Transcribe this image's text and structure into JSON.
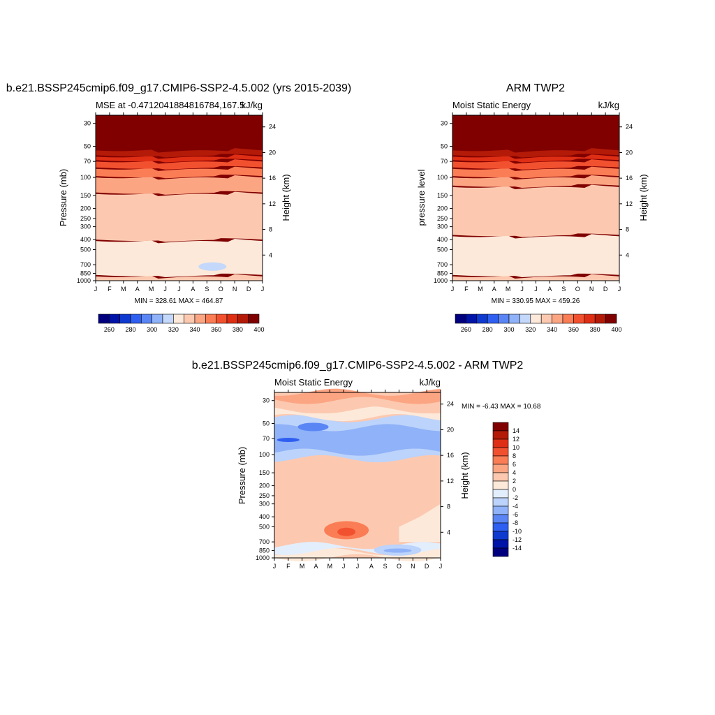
{
  "panel_1": {
    "main_title": "b.e21.BSSP245cmip6.f09_g17.CMIP6-SSP2-4.5.002 (yrs 2015-2039)",
    "left_string": "MSE at -0.4712041884816784,167.5",
    "right_string": "kJ/kg",
    "ylabel": "Pressure (mb)",
    "ylabel_right": "Height (km)",
    "stats": "MIN = 328.61 MAX = 464.87"
  },
  "panel_2": {
    "main_title": "ARM TWP2",
    "left_string": "Moist Static Energy",
    "right_string": "kJ/kg",
    "ylabel": "pressure level",
    "ylabel_right": "Height (km)",
    "stats": "MIN = 330.95 MAX = 459.26"
  },
  "panel_3": {
    "main_title": "b.e21.BSSP245cmip6.f09_g17.CMIP6-SSP2-4.5.002 - ARM TWP2",
    "left_string": "Moist Static Energy",
    "right_string": "kJ/kg",
    "ylabel": "Pressure (mb)",
    "ylabel_right": "Height (km)",
    "stats": "MIN =  -6.43 MAX =  10.68"
  },
  "chart_data": [
    {
      "type": "heatmap",
      "title": "b.e21.BSSP245cmip6.f09_g17.CMIP6-SSP2-4.5.002 (yrs 2015-2039)",
      "subtitle": "MSE at -0.4712041884816784,167.5",
      "units": "kJ/kg",
      "x": [
        "J",
        "F",
        "M",
        "A",
        "M",
        "J",
        "J",
        "A",
        "S",
        "O",
        "N",
        "D",
        "J"
      ],
      "y_pressure_ticks": [
        30,
        50,
        70,
        100,
        150,
        200,
        250,
        300,
        400,
        500,
        700,
        850,
        1000
      ],
      "y_height_ticks_km": [
        4,
        8,
        12,
        16,
        20,
        24
      ],
      "ylabel": "Pressure (mb)",
      "ylabel_right": "Height (km)",
      "y_scale": "log",
      "contour_levels": [
        260,
        270,
        280,
        290,
        300,
        310,
        320,
        330,
        340,
        350,
        360,
        370,
        380,
        390,
        400
      ],
      "colorbar_labels": [
        260,
        280,
        300,
        320,
        340,
        360,
        380,
        400
      ],
      "min": 328.61,
      "max": 464.87
    },
    {
      "type": "heatmap",
      "title": "ARM TWP2",
      "subtitle": "Moist Static Energy",
      "units": "kJ/kg",
      "x": [
        "J",
        "F",
        "M",
        "A",
        "M",
        "J",
        "J",
        "A",
        "S",
        "O",
        "N",
        "D",
        "J"
      ],
      "y_pressure_ticks": [
        30,
        50,
        70,
        100,
        150,
        200,
        250,
        300,
        400,
        500,
        700,
        850,
        1000
      ],
      "y_height_ticks_km": [
        4,
        8,
        12,
        16,
        20,
        24
      ],
      "ylabel": "pressure level",
      "ylabel_right": "Height (km)",
      "y_scale": "log",
      "contour_levels": [
        260,
        270,
        280,
        290,
        300,
        310,
        320,
        330,
        340,
        350,
        360,
        370,
        380,
        390,
        400
      ],
      "colorbar_labels": [
        260,
        280,
        300,
        320,
        340,
        360,
        380,
        400
      ],
      "min": 330.95,
      "max": 459.26
    },
    {
      "type": "heatmap",
      "title": "b.e21.BSSP245cmip6.f09_g17.CMIP6-SSP2-4.5.002 - ARM TWP2",
      "subtitle": "Moist Static Energy",
      "units": "kJ/kg",
      "x": [
        "J",
        "F",
        "M",
        "A",
        "M",
        "J",
        "J",
        "A",
        "S",
        "O",
        "N",
        "D",
        "J"
      ],
      "y_pressure_ticks": [
        30,
        50,
        70,
        100,
        150,
        200,
        250,
        300,
        400,
        500,
        700,
        850,
        1000
      ],
      "y_height_ticks_km": [
        4,
        8,
        12,
        16,
        20,
        24
      ],
      "ylabel": "Pressure (mb)",
      "ylabel_right": "Height (km)",
      "y_scale": "log",
      "contour_levels": [
        -14,
        -12,
        -10,
        -8,
        -6,
        -4,
        -2,
        0,
        2,
        4,
        6,
        8,
        10,
        12,
        14
      ],
      "colorbar_labels": [
        14,
        12,
        10,
        8,
        6,
        4,
        2,
        0,
        -2,
        -4,
        -6,
        -8,
        -10,
        -12,
        -14
      ],
      "min": -6.43,
      "max": 10.68
    }
  ],
  "colors": {
    "mse_scale": [
      "#00007f",
      "#0014a8",
      "#0f3ad0",
      "#2e5ff0",
      "#5a86f5",
      "#8fb2f8",
      "#c3d8fb",
      "#fde9d9",
      "#fcc9b0",
      "#fca583",
      "#fa7d55",
      "#f2512f",
      "#de2e14",
      "#b41a08",
      "#800000"
    ],
    "diff_scale": [
      "#00007f",
      "#0014a8",
      "#0f3ad0",
      "#2e5ff0",
      "#5a86f5",
      "#8fb2f8",
      "#bcd3fb",
      "#e3eefd",
      "#fde9d9",
      "#fcc9b0",
      "#fca583",
      "#fa7d55",
      "#f2512f",
      "#de2e14",
      "#b41a08",
      "#800000"
    ]
  }
}
